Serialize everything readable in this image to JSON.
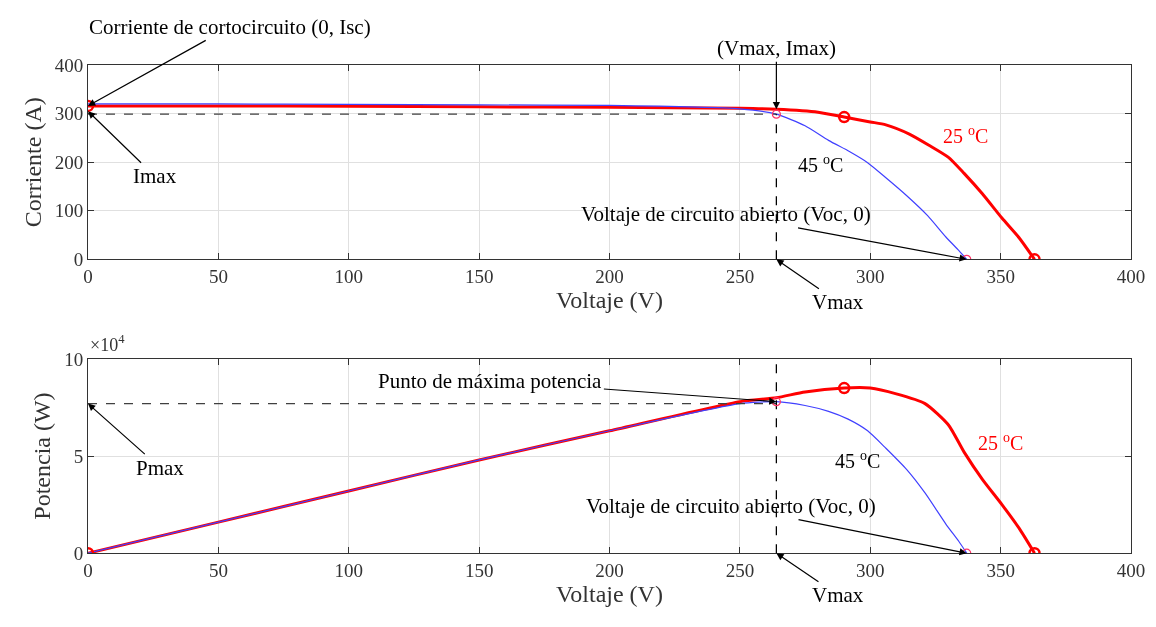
{
  "chart_data": [
    {
      "type": "line",
      "xlabel": "Voltaje (V)",
      "ylabel": "Corriente (A)",
      "xlim": [
        0,
        400
      ],
      "xticks": [
        0,
        50,
        100,
        150,
        200,
        250,
        300,
        350,
        400
      ],
      "ylim": [
        0,
        400
      ],
      "yticks": [
        0,
        100,
        200,
        300,
        400
      ],
      "grid": true,
      "series": [
        {
          "name": "25 $^{o}$C",
          "color": "#ff0000",
          "line_style": "solid",
          "x": [
            0,
            50,
            100,
            150,
            200,
            250,
            264,
            280,
            290,
            300,
            306,
            315,
            322.5,
            330,
            336,
            343,
            350.5,
            357,
            363
          ],
          "values": [
            316,
            316,
            315,
            314,
            313,
            311,
            309,
            303,
            293,
            283,
            277,
            258,
            235,
            210,
            177,
            135,
            85,
            45,
            0
          ]
        },
        {
          "name": "45 $^{o}$C",
          "color": "#4040ff",
          "line_style": "solid",
          "x": [
            0,
            50,
            100,
            150,
            200,
            250,
            264,
            275,
            284,
            292,
            299,
            306,
            314,
            322,
            329,
            334,
            337
          ],
          "values": [
            320,
            320,
            319,
            318,
            317,
            310,
            299,
            275,
            245,
            222,
            199,
            168,
            131,
            90,
            46,
            18,
            0
          ]
        },
        {
          "color": "#404040",
          "line_style": "dashed",
          "x": [
            0,
            264
          ],
          "values": [
            299,
            299
          ]
        },
        {
          "color": "#000000",
          "line_style": "dashed",
          "x": [
            264,
            264
          ],
          "values": [
            0,
            299
          ]
        },
        {
          "color": "#ff0000",
          "type": "scatter",
          "marker": "circle",
          "x": [
            0,
            290,
            363
          ],
          "values": [
            316,
            293,
            0
          ]
        },
        {
          "color": "#ff3366",
          "type": "scatter",
          "marker": "circle",
          "x": [
            264,
            337
          ],
          "values": [
            299,
            0
          ]
        }
      ],
      "annotations": [
        {
          "text": "Corriente de cortocircuito (0, Isc)",
          "x": 0,
          "y": 316
        },
        {
          "text": "Imax",
          "x": 0,
          "y": 305
        },
        {
          "text": "(Vmax, Imax)",
          "x": 264,
          "y": 309
        },
        {
          "text": "Voltaje de circuito abierto (Voc, 0)",
          "x": 337,
          "y": 0
        },
        {
          "text": "Vmax",
          "x": 264,
          "y": 0
        }
      ]
    },
    {
      "type": "line",
      "xlabel": "Voltaje (V)",
      "ylabel": "Potencia (W)",
      "xlim": [
        0,
        400
      ],
      "xticks": [
        0,
        50,
        100,
        150,
        200,
        250,
        300,
        350,
        400
      ],
      "ylim": [
        0,
        10
      ],
      "yticks": [
        0,
        5,
        10
      ],
      "grid": true,
      "series": [
        {
          "name": "25 $^{o}$C",
          "color": "#ff0000",
          "line_style": "solid",
          "x": [
            0,
            50,
            100,
            150,
            200,
            250,
            264,
            275,
            290,
            300,
            310,
            321,
            330,
            336,
            343,
            350.5,
            357,
            363
          ],
          "values": [
            0,
            1.6,
            3.2,
            4.8,
            6.3,
            7.8,
            8.0,
            8.3,
            8.5,
            8.5,
            8.2,
            7.7,
            6.6,
            5.2,
            3.8,
            2.5,
            1.3,
            0
          ]
        },
        {
          "name": "45 $^{o}$C",
          "color": "#4040ff",
          "line_style": "solid",
          "x": [
            0,
            50,
            100,
            150,
            200,
            250,
            264,
            275,
            284,
            291.5,
            299,
            306,
            314,
            321,
            329,
            334,
            337
          ],
          "values": [
            0,
            1.6,
            3.2,
            4.8,
            6.3,
            7.7,
            7.8,
            7.6,
            7.3,
            6.9,
            6.3,
            5.4,
            4.3,
            3.1,
            1.5,
            0.6,
            0
          ]
        },
        {
          "color": "#404040",
          "line_style": "dashed",
          "x": [
            0,
            264
          ],
          "values": [
            7.7,
            7.7
          ]
        },
        {
          "color": "#000000",
          "line_style": "dashed",
          "x": [
            264,
            264
          ],
          "values": [
            0,
            10
          ]
        },
        {
          "color": "#ff0000",
          "type": "scatter",
          "marker": "circle",
          "x": [
            0,
            290,
            363
          ],
          "values": [
            0,
            8.5,
            0
          ]
        },
        {
          "color": "#ff3366",
          "type": "scatter",
          "marker": "circle",
          "x": [
            264,
            337
          ],
          "values": [
            7.8,
            0
          ]
        }
      ],
      "annotations": [
        "×10$^{4}$",
        {
          "text": "Punto de máxima potencia",
          "x": 264,
          "y": 7.8
        },
        {
          "text": "Pmax",
          "x": 0,
          "y": 7.7
        },
        {
          "text": "Voltaje de circuito abierto (Voc, 0)",
          "x": 337,
          "y": 0
        },
        {
          "text": "Vmax",
          "x": 264,
          "y": 0
        }
      ]
    }
  ]
}
